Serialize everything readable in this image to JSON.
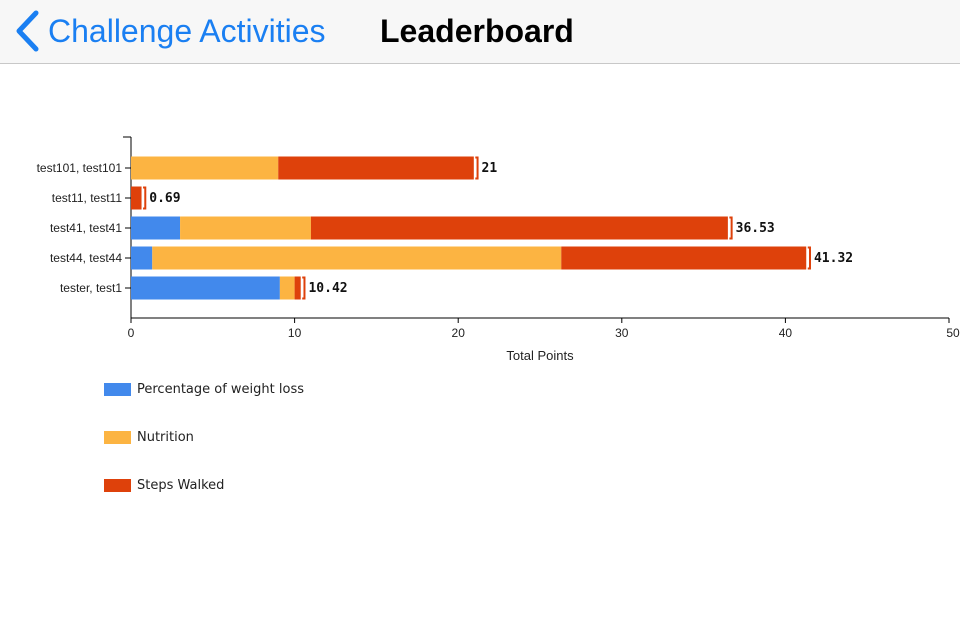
{
  "nav": {
    "back_label": "Challenge Activities",
    "title": "Leaderboard",
    "back_icon": "chevron-left-icon"
  },
  "chart_data": {
    "type": "bar",
    "orientation": "horizontal",
    "stacked": true,
    "categories": [
      "test101, test101",
      "test11, test11",
      "test41, test41",
      "test44, test44",
      "tester, test1"
    ],
    "series": [
      {
        "name": "Percentage of weight loss",
        "color": "#4289ec",
        "values": [
          0,
          0,
          3,
          1.3,
          9.1
        ]
      },
      {
        "name": "Nutrition",
        "color": "#fcb442",
        "values": [
          9,
          0,
          8,
          25,
          0.9
        ]
      },
      {
        "name": "Steps Walked",
        "color": "#de410b",
        "values": [
          12,
          0.69,
          25.53,
          15.02,
          0.42
        ]
      }
    ],
    "totals": [
      "21",
      "0.69",
      "36.53",
      "41.32",
      "10.42"
    ],
    "xlabel": "Total Points",
    "ylabel": "",
    "xlim": [
      0,
      50
    ],
    "xticks": [
      "0",
      "10",
      "20",
      "30",
      "40",
      "50"
    ],
    "grid": false,
    "legend_position": "bottom-left"
  }
}
